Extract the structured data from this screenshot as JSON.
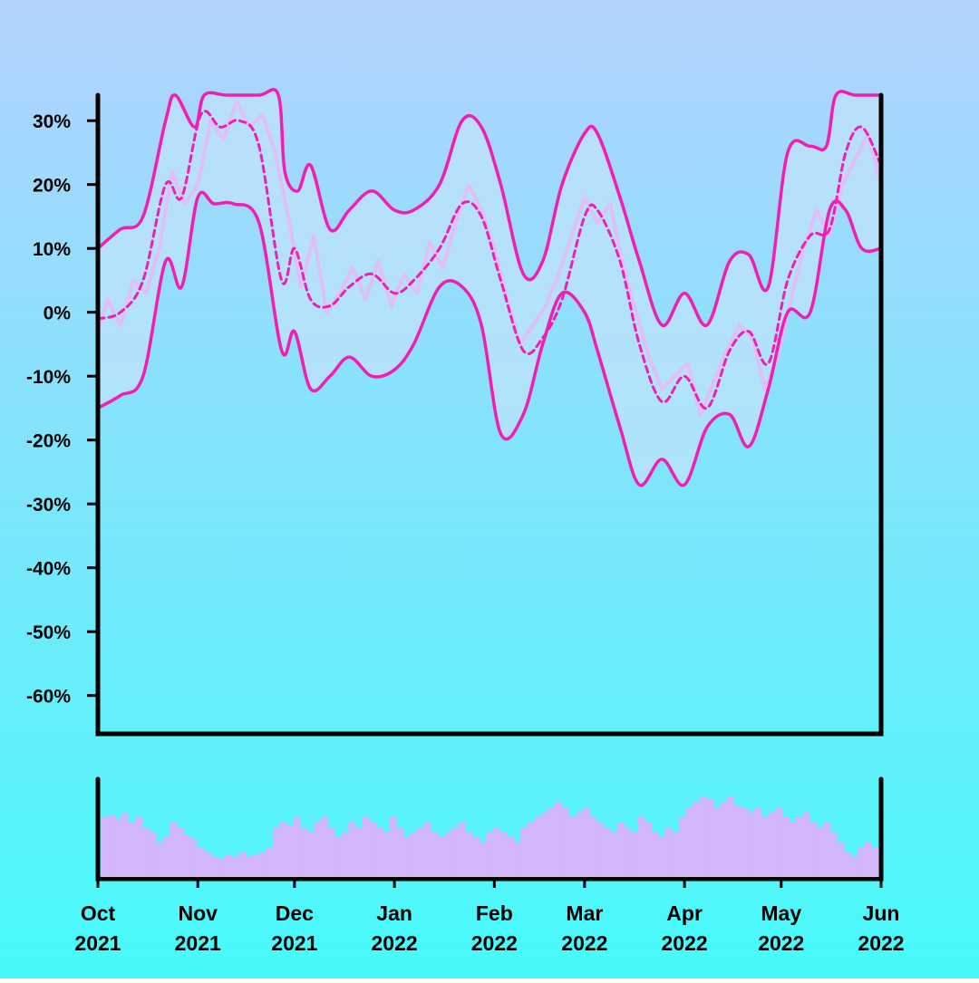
{
  "colors": {
    "background_top": "#b3d2fc",
    "background_bottom": "#47fafa",
    "band_fill": "#bfe3fb",
    "line": "#f01eb4",
    "raw": "#e8b9f5",
    "volume": "#d2b7fa",
    "axis": "#000000"
  },
  "chart_data": {
    "type": "line",
    "x_range": [
      "2021-10-01",
      "2022-06-01"
    ],
    "ylim": [
      -0.66,
      0.34
    ],
    "y_ticks": [
      {
        "value": 0.3,
        "label": "30%"
      },
      {
        "value": 0.2,
        "label": "20%"
      },
      {
        "value": 0.1,
        "label": "10%"
      },
      {
        "value": 0.0,
        "label": "0%"
      },
      {
        "value": -0.1,
        "label": "-10%"
      },
      {
        "value": -0.2,
        "label": "-20%"
      },
      {
        "value": -0.3,
        "label": "-30%"
      },
      {
        "value": -0.4,
        "label": "-40%"
      },
      {
        "value": -0.5,
        "label": "-50%"
      },
      {
        "value": -0.6,
        "label": "-60%"
      }
    ],
    "x_ticks": [
      {
        "date": "2021-10-01",
        "month": "Oct",
        "year": "2021"
      },
      {
        "date": "2021-11-01",
        "month": "Nov",
        "year": "2021"
      },
      {
        "date": "2021-12-01",
        "month": "Dec",
        "year": "2021"
      },
      {
        "date": "2022-01-01",
        "month": "Jan",
        "year": "2022"
      },
      {
        "date": "2022-02-01",
        "month": "Feb",
        "year": "2022"
      },
      {
        "date": "2022-03-01",
        "month": "Mar",
        "year": "2022"
      },
      {
        "date": "2022-04-01",
        "month": "Apr",
        "year": "2022"
      },
      {
        "date": "2022-05-01",
        "month": "May",
        "year": "2022"
      },
      {
        "date": "2022-06-01",
        "month": "Jun",
        "year": "2022"
      }
    ],
    "series": [
      {
        "role": "center",
        "style": "dashed",
        "x": [
          "2021-10-01",
          "2021-10-08",
          "2021-10-15",
          "2021-10-22",
          "2021-10-27",
          "2021-11-02",
          "2021-11-08",
          "2021-11-14",
          "2021-11-20",
          "2021-11-27",
          "2021-12-01",
          "2021-12-06",
          "2021-12-12",
          "2021-12-18",
          "2021-12-25",
          "2022-01-01",
          "2022-01-07",
          "2022-01-15",
          "2022-01-22",
          "2022-01-28",
          "2022-02-03",
          "2022-02-10",
          "2022-02-16",
          "2022-02-22",
          "2022-03-01",
          "2022-03-05",
          "2022-03-12",
          "2022-03-18",
          "2022-03-25",
          "2022-04-01",
          "2022-04-08",
          "2022-04-15",
          "2022-04-21",
          "2022-04-27",
          "2022-05-03",
          "2022-05-10",
          "2022-05-16",
          "2022-05-21",
          "2022-05-26",
          "2022-06-01"
        ],
        "y": [
          -0.01,
          0.0,
          0.05,
          0.2,
          0.18,
          0.31,
          0.29,
          0.3,
          0.26,
          0.05,
          0.1,
          0.02,
          0.01,
          0.04,
          0.06,
          0.03,
          0.05,
          0.1,
          0.17,
          0.15,
          0.05,
          -0.06,
          -0.04,
          0.02,
          0.15,
          0.16,
          0.08,
          -0.05,
          -0.14,
          -0.1,
          -0.15,
          -0.06,
          -0.03,
          -0.08,
          0.05,
          0.12,
          0.13,
          0.25,
          0.29,
          0.23
        ]
      },
      {
        "role": "upper",
        "style": "solid",
        "x": [
          "2021-10-01",
          "2021-10-08",
          "2021-10-15",
          "2021-10-22",
          "2021-10-25",
          "2021-10-31",
          "2021-11-03",
          "2021-11-10",
          "2021-11-20",
          "2021-11-26",
          "2021-11-28",
          "2021-12-02",
          "2021-12-06",
          "2021-12-12",
          "2021-12-18",
          "2021-12-25",
          "2022-01-01",
          "2022-01-07",
          "2022-01-15",
          "2022-01-22",
          "2022-01-28",
          "2022-02-03",
          "2022-02-10",
          "2022-02-16",
          "2022-02-22",
          "2022-03-01",
          "2022-03-05",
          "2022-03-12",
          "2022-03-18",
          "2022-03-25",
          "2022-04-01",
          "2022-04-08",
          "2022-04-15",
          "2022-04-21",
          "2022-04-27",
          "2022-05-03",
          "2022-05-10",
          "2022-05-15",
          "2022-05-18",
          "2022-05-24",
          "2022-06-01"
        ],
        "y": [
          0.1,
          0.13,
          0.15,
          0.3,
          0.34,
          0.29,
          0.34,
          0.34,
          0.34,
          0.34,
          0.22,
          0.19,
          0.23,
          0.13,
          0.16,
          0.19,
          0.16,
          0.16,
          0.2,
          0.3,
          0.29,
          0.2,
          0.06,
          0.08,
          0.2,
          0.28,
          0.28,
          0.18,
          0.08,
          -0.02,
          0.03,
          -0.02,
          0.08,
          0.09,
          0.04,
          0.25,
          0.26,
          0.26,
          0.34,
          0.34,
          0.34
        ]
      },
      {
        "role": "lower",
        "style": "solid",
        "x": [
          "2021-10-01",
          "2021-10-08",
          "2021-10-15",
          "2021-10-22",
          "2021-10-27",
          "2021-11-01",
          "2021-11-06",
          "2021-11-12",
          "2021-11-20",
          "2021-11-27",
          "2021-12-01",
          "2021-12-06",
          "2021-12-12",
          "2021-12-18",
          "2021-12-25",
          "2022-01-01",
          "2022-01-07",
          "2022-01-15",
          "2022-01-22",
          "2022-01-28",
          "2022-02-03",
          "2022-02-10",
          "2022-02-16",
          "2022-02-22",
          "2022-03-01",
          "2022-03-05",
          "2022-03-12",
          "2022-03-18",
          "2022-03-25",
          "2022-04-01",
          "2022-04-08",
          "2022-04-15",
          "2022-04-21",
          "2022-04-27",
          "2022-05-03",
          "2022-05-10",
          "2022-05-16",
          "2022-05-21",
          "2022-05-26",
          "2022-06-01"
        ],
        "y": [
          -0.15,
          -0.13,
          -0.1,
          0.08,
          0.04,
          0.18,
          0.17,
          0.17,
          0.14,
          -0.06,
          -0.03,
          -0.12,
          -0.1,
          -0.07,
          -0.1,
          -0.09,
          -0.05,
          0.04,
          0.04,
          -0.02,
          -0.19,
          -0.16,
          -0.05,
          0.03,
          0.0,
          -0.06,
          -0.18,
          -0.27,
          -0.23,
          -0.27,
          -0.18,
          -0.16,
          -0.21,
          -0.12,
          0.0,
          0.0,
          0.16,
          0.16,
          0.1,
          0.1
        ]
      },
      {
        "role": "raw",
        "style": "thin",
        "x": [
          "2021-10-01",
          "2021-10-04",
          "2021-10-08",
          "2021-10-12",
          "2021-10-16",
          "2021-10-20",
          "2021-10-24",
          "2021-10-28",
          "2021-11-01",
          "2021-11-05",
          "2021-11-09",
          "2021-11-13",
          "2021-11-17",
          "2021-11-21",
          "2021-11-25",
          "2021-11-29",
          "2021-12-03",
          "2021-12-07",
          "2021-12-11",
          "2021-12-15",
          "2021-12-19",
          "2021-12-23",
          "2021-12-27",
          "2021-12-31",
          "2022-01-04",
          "2022-01-08",
          "2022-01-12",
          "2022-01-16",
          "2022-01-20",
          "2022-01-24",
          "2022-01-28",
          "2022-02-01",
          "2022-02-05",
          "2022-02-09",
          "2022-02-13",
          "2022-02-17",
          "2022-02-21",
          "2022-02-25",
          "2022-03-01",
          "2022-03-05",
          "2022-03-09",
          "2022-03-13",
          "2022-03-17",
          "2022-03-21",
          "2022-03-25",
          "2022-03-29",
          "2022-04-02",
          "2022-04-06",
          "2022-04-10",
          "2022-04-14",
          "2022-04-18",
          "2022-04-22",
          "2022-04-26",
          "2022-04-30",
          "2022-05-04",
          "2022-05-08",
          "2022-05-12",
          "2022-05-16",
          "2022-05-20",
          "2022-05-24",
          "2022-05-28",
          "2022-06-01"
        ],
        "y": [
          -0.03,
          0.02,
          -0.02,
          0.05,
          0.03,
          0.1,
          0.22,
          0.17,
          0.2,
          0.3,
          0.27,
          0.33,
          0.29,
          0.31,
          0.25,
          0.15,
          0.04,
          0.12,
          0.0,
          0.03,
          0.07,
          0.02,
          0.08,
          0.01,
          0.06,
          0.03,
          0.11,
          0.07,
          0.14,
          0.2,
          0.16,
          0.1,
          0.02,
          -0.05,
          -0.02,
          0.01,
          0.06,
          0.12,
          0.18,
          0.14,
          0.17,
          0.07,
          0.0,
          -0.07,
          -0.12,
          -0.1,
          -0.08,
          -0.16,
          -0.11,
          -0.06,
          -0.02,
          -0.04,
          -0.12,
          -0.07,
          0.02,
          0.1,
          0.16,
          0.12,
          0.2,
          0.24,
          0.28,
          0.2
        ]
      }
    ],
    "volume": [
      0.6,
      0.62,
      0.58,
      0.64,
      0.55,
      0.6,
      0.5,
      0.45,
      0.35,
      0.4,
      0.55,
      0.5,
      0.42,
      0.38,
      0.3,
      0.25,
      0.2,
      0.18,
      0.22,
      0.2,
      0.25,
      0.2,
      0.22,
      0.25,
      0.3,
      0.5,
      0.55,
      0.52,
      0.6,
      0.5,
      0.45,
      0.55,
      0.6,
      0.5,
      0.4,
      0.45,
      0.55,
      0.5,
      0.6,
      0.55,
      0.5,
      0.45,
      0.6,
      0.5,
      0.4,
      0.45,
      0.5,
      0.55,
      0.45,
      0.4,
      0.45,
      0.5,
      0.55,
      0.45,
      0.4,
      0.35,
      0.45,
      0.5,
      0.45,
      0.4,
      0.35,
      0.5,
      0.55,
      0.6,
      0.65,
      0.7,
      0.75,
      0.7,
      0.6,
      0.65,
      0.7,
      0.6,
      0.55,
      0.5,
      0.45,
      0.55,
      0.5,
      0.45,
      0.6,
      0.55,
      0.45,
      0.4,
      0.5,
      0.45,
      0.6,
      0.7,
      0.75,
      0.8,
      0.78,
      0.7,
      0.75,
      0.8,
      0.72,
      0.7,
      0.65,
      0.7,
      0.6,
      0.65,
      0.7,
      0.6,
      0.55,
      0.6,
      0.65,
      0.55,
      0.5,
      0.55,
      0.45,
      0.35,
      0.25,
      0.2,
      0.3,
      0.35,
      0.3
    ]
  }
}
